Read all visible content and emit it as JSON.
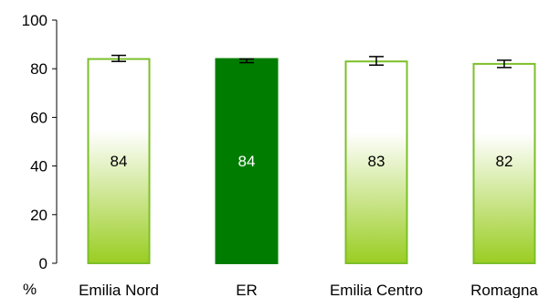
{
  "chart_data": {
    "type": "bar",
    "categories": [
      "Emilia Nord",
      "ER",
      "Emilia Centro",
      "Romagna"
    ],
    "values": [
      84,
      84,
      83,
      82
    ],
    "value_labels": [
      "84",
      "84",
      "83",
      "82"
    ],
    "error_bars": [
      [
        83,
        85.5
      ],
      [
        82.5,
        84
      ],
      [
        81.5,
        85
      ],
      [
        80.5,
        83.5
      ]
    ],
    "highlight_index": 1,
    "ylim": [
      0,
      100
    ],
    "yticks": [
      0,
      20,
      40,
      60,
      80,
      100
    ],
    "unit_label": "%",
    "grid": false,
    "legend": "none",
    "colors": {
      "bar_outline": "#7cbf2a",
      "bar_gradient_top": "#ffffff",
      "bar_gradient_bottom": "#9acd22",
      "highlight_fill": "#007d00",
      "highlight_label": "#ffffff",
      "label": "#000000",
      "axis": "#000000"
    }
  }
}
